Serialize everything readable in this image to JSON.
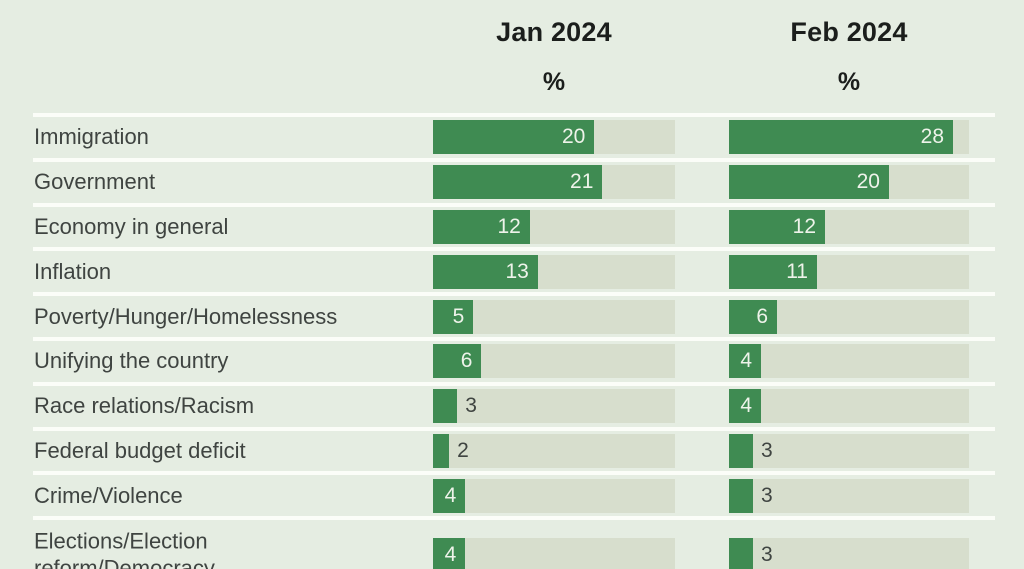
{
  "page": {
    "background": "#e5ede2"
  },
  "chart_data": {
    "type": "bar",
    "orientation": "horizontal",
    "columns": [
      {
        "label": "Jan 2024",
        "unit": "%"
      },
      {
        "label": "Feb 2024",
        "unit": "%"
      }
    ],
    "categories": [
      "Immigration",
      "Government",
      "Economy in general",
      "Inflation",
      "Poverty/Hunger/Homelessness",
      "Unifying the country",
      "Race relations/Racism",
      "Federal budget deficit",
      "Crime/Violence",
      "Elections/Election reform/Democracy"
    ],
    "series": [
      {
        "name": "Jan 2024",
        "values": [
          20,
          21,
          12,
          13,
          5,
          6,
          3,
          2,
          4,
          4
        ]
      },
      {
        "name": "Feb 2024",
        "values": [
          28,
          20,
          12,
          11,
          6,
          4,
          4,
          3,
          3,
          3
        ]
      }
    ],
    "xlim": [
      0,
      30
    ],
    "grid": false,
    "legend_position": "column headers above each bar group",
    "value_labels": "at end of each bar; white inside bar when value >= 4, dark outside bar otherwise",
    "value_label_inside_min": 4,
    "colors": {
      "bar": "#3f8b52",
      "track": "#d7decd",
      "background": "#e5ede2",
      "divider": "#fbfdf8",
      "label_text": "#3f4441",
      "value_inside_text": "#eef3ea",
      "header_text": "#1b1e1c"
    }
  }
}
